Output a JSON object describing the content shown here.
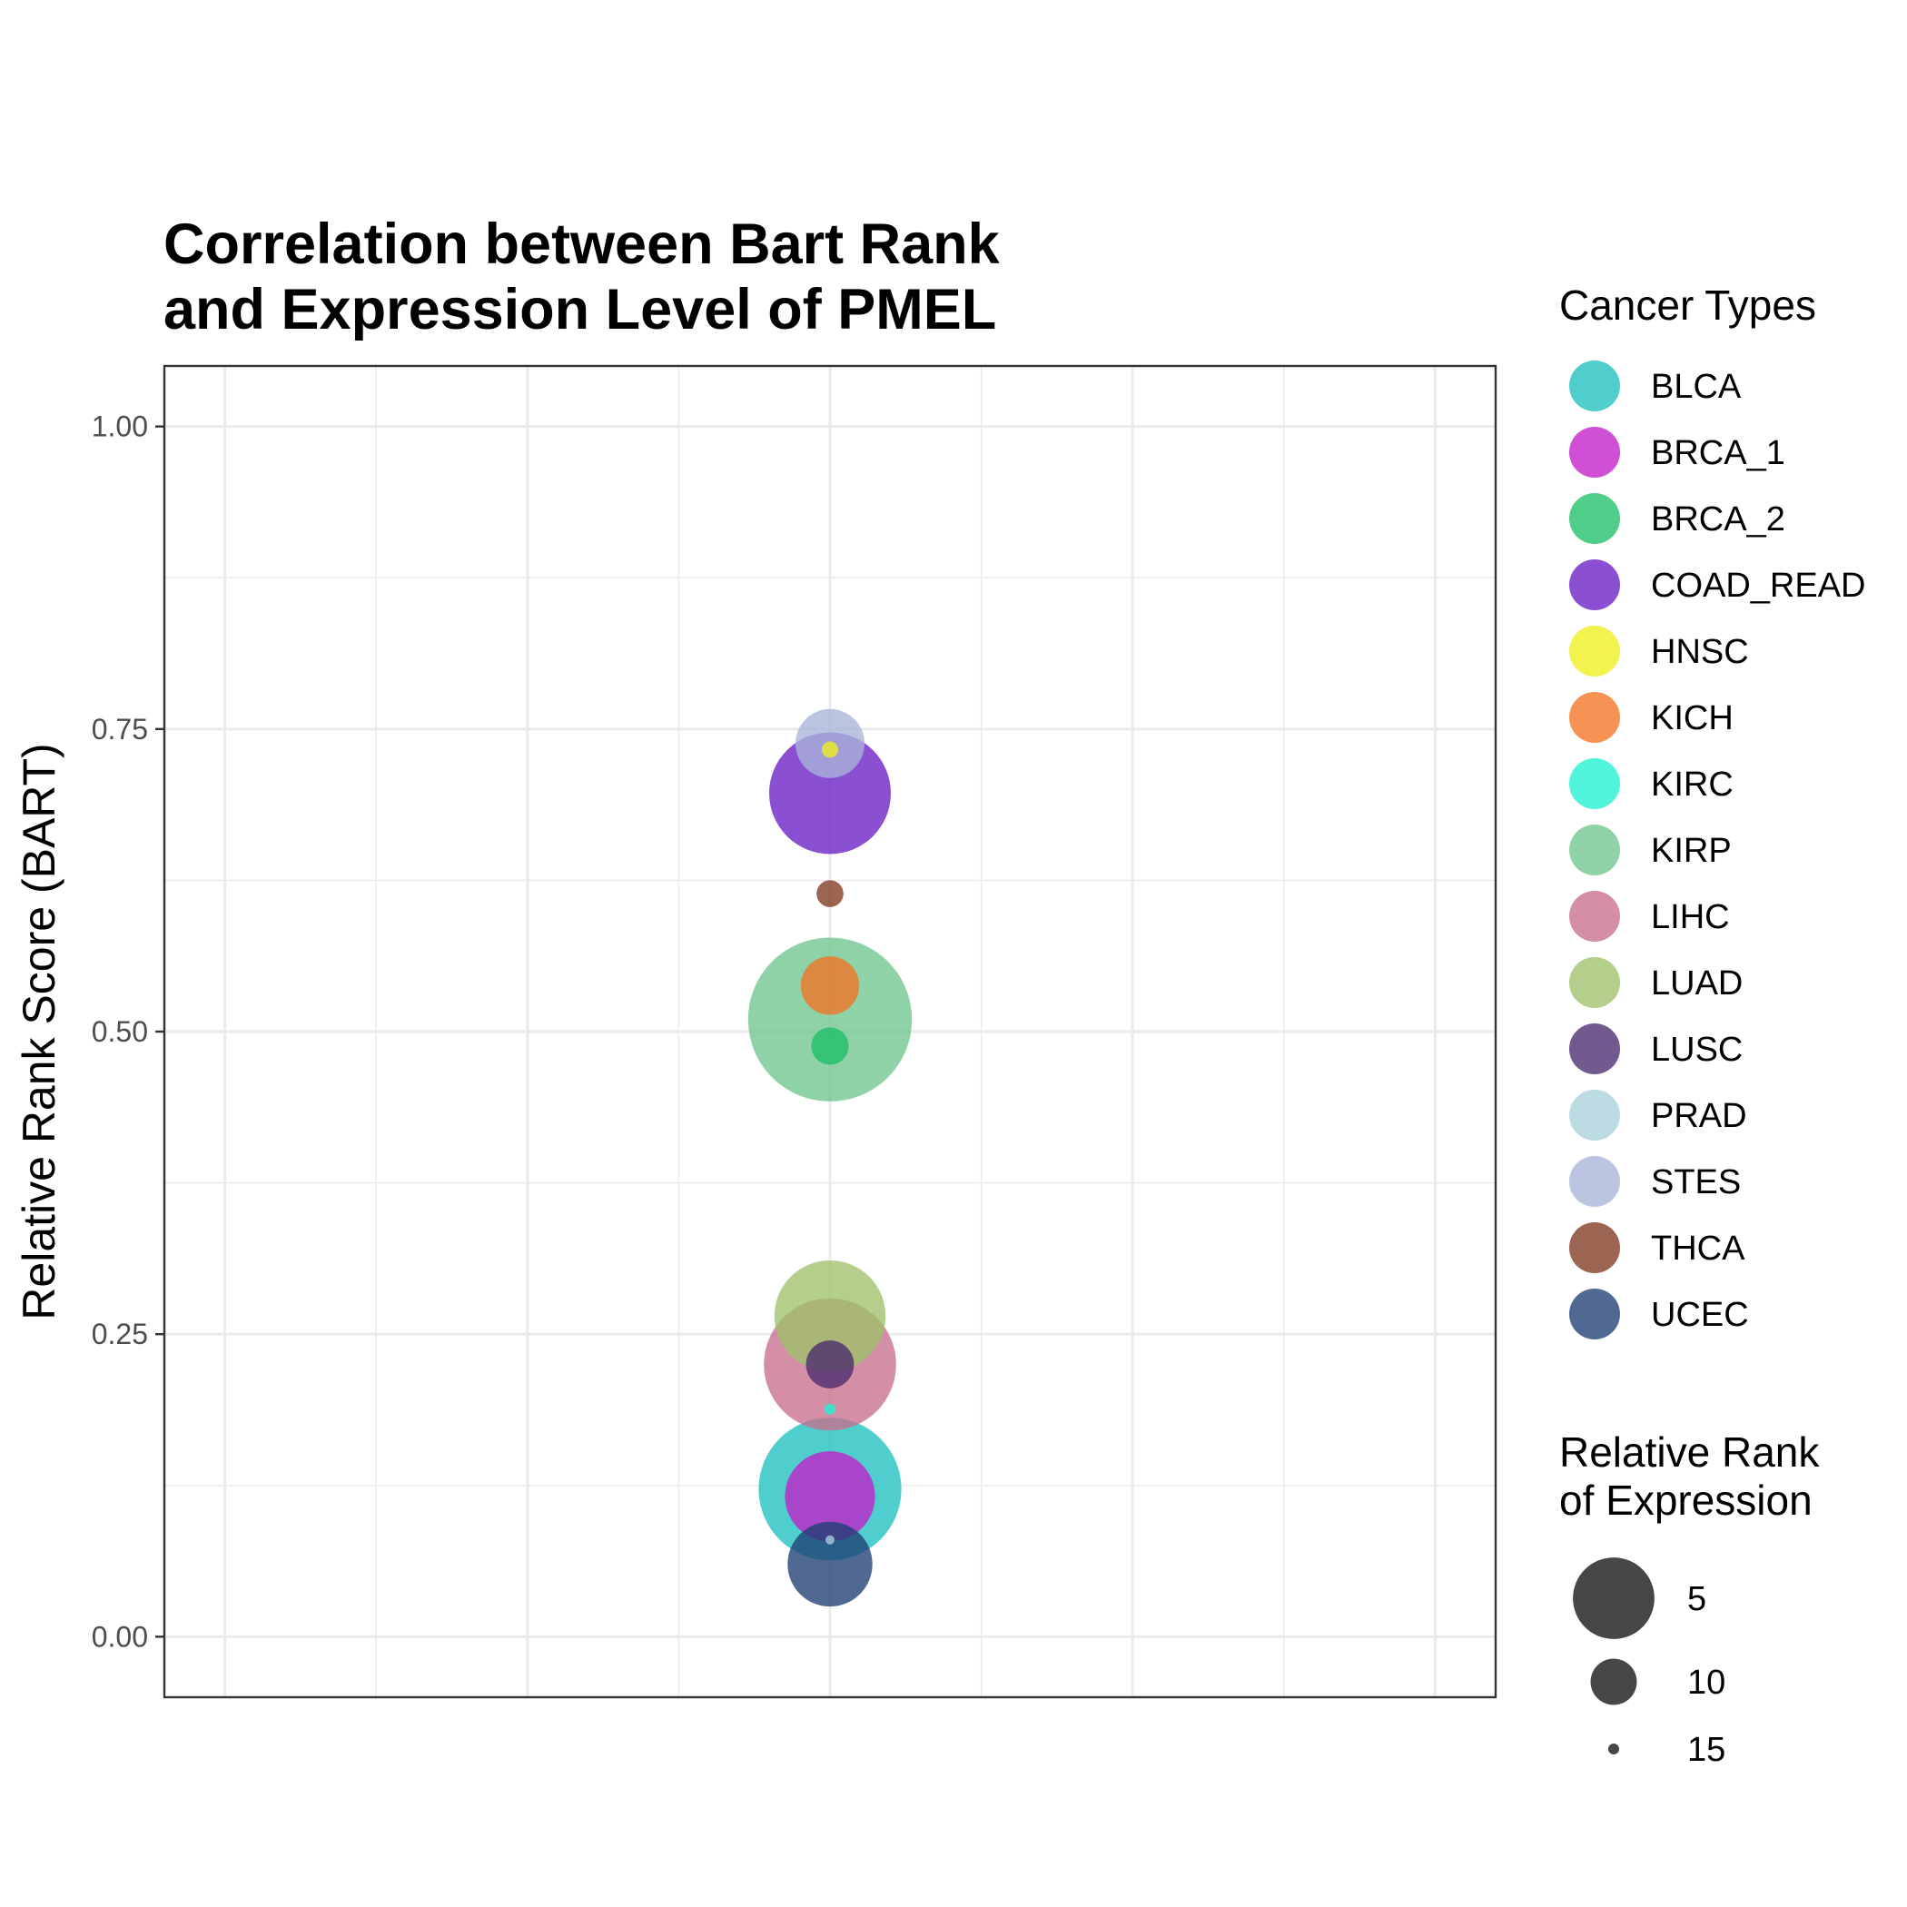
{
  "chart_data": {
    "type": "scatter",
    "title": [
      "Correlation between Bart Rank",
      "and Expression Level of PMEL"
    ],
    "xlabel": "",
    "ylabel": "Relative Rank Score (BART)",
    "ylim": [
      -0.05,
      1.05
    ],
    "xlim": [
      -1.1,
      1.1
    ],
    "yticks": [
      0,
      0.25,
      0.5,
      0.75,
      1.0
    ],
    "ytick_labels": [
      "0.00",
      "0.25",
      "0.50",
      "0.75",
      "1.00"
    ],
    "grid": true,
    "legend_placement": "right",
    "color_legend": {
      "title": "Cancer Types",
      "items": [
        {
          "name": "BLCA",
          "color": "#1FC0C0"
        },
        {
          "name": "BRCA_1",
          "color": "#C21FC9"
        },
        {
          "name": "BRCA_2",
          "color": "#1FBF68"
        },
        {
          "name": "COAD_READ",
          "color": "#6A1FC4"
        },
        {
          "name": "HNSC",
          "color": "#F0EF1F"
        },
        {
          "name": "KICH",
          "color": "#F47323"
        },
        {
          "name": "KIRC",
          "color": "#1FF2D2"
        },
        {
          "name": "KIRP",
          "color": "#6FC58F"
        },
        {
          "name": "LIHC",
          "color": "#C8708D"
        },
        {
          "name": "LUAD",
          "color": "#9DC16A"
        },
        {
          "name": "LUSC",
          "color": "#4A2A6E"
        },
        {
          "name": "PRAD",
          "color": "#A9CFD8"
        },
        {
          "name": "STES",
          "color": "#A8B5DA"
        },
        {
          "name": "THCA",
          "color": "#7F3A20"
        },
        {
          "name": "UCEC",
          "color": "#1F3F75"
        }
      ]
    },
    "size_legend": {
      "title": [
        "Relative Rank",
        "of Expression"
      ],
      "values": [
        5,
        10,
        15
      ],
      "labels": [
        "5",
        "10",
        "15"
      ]
    },
    "points": [
      {
        "series": "KIRP",
        "x": 0,
        "y": 0.51,
        "expression_rank": 1
      },
      {
        "series": "BLCA",
        "x": 0,
        "y": 0.122,
        "expression_rank": 3
      },
      {
        "series": "LIHC",
        "x": 0,
        "y": 0.225,
        "expression_rank": 4
      },
      {
        "series": "COAD_READ",
        "x": 0,
        "y": 0.697,
        "expression_rank": 5
      },
      {
        "series": "LUAD",
        "x": 0,
        "y": 0.265,
        "expression_rank": 6
      },
      {
        "series": "BRCA_1",
        "x": 0,
        "y": 0.116,
        "expression_rank": 8
      },
      {
        "series": "UCEC",
        "x": 0,
        "y": 0.06,
        "expression_rank": 8.5
      },
      {
        "series": "STES",
        "x": 0,
        "y": 0.738,
        "expression_rank": 10
      },
      {
        "series": "KICH",
        "x": 0,
        "y": 0.538,
        "expression_rank": 11
      },
      {
        "series": "LUSC",
        "x": 0,
        "y": 0.225,
        "expression_rank": 12
      },
      {
        "series": "BRCA_2",
        "x": 0,
        "y": 0.488,
        "expression_rank": 13
      },
      {
        "series": "THCA",
        "x": 0,
        "y": 0.614,
        "expression_rank": 14
      },
      {
        "series": "HNSC",
        "x": 0,
        "y": 0.733,
        "expression_rank": 15
      },
      {
        "series": "KIRC",
        "x": 0,
        "y": 0.188,
        "expression_rank": 15.5
      },
      {
        "series": "PRAD",
        "x": 0,
        "y": 0.08,
        "expression_rank": 16
      }
    ]
  }
}
